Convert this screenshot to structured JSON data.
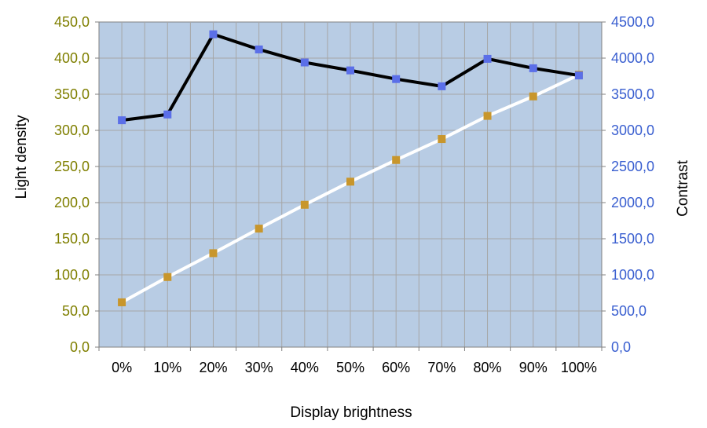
{
  "chart_data": {
    "type": "line",
    "title": "",
    "xlabel": "Display brightness",
    "ylabel_left": "Light density",
    "ylabel_right": "Contrast",
    "categories": [
      "0%",
      "10%",
      "20%",
      "30%",
      "40%",
      "50%",
      "60%",
      "70%",
      "80%",
      "90%",
      "100%"
    ],
    "y_left": {
      "range": [
        0,
        450
      ],
      "ticks": [
        0,
        50,
        100,
        150,
        200,
        250,
        300,
        350,
        400,
        450
      ],
      "tick_labels": [
        "0,0",
        "50,0",
        "100,0",
        "150,0",
        "200,0",
        "250,0",
        "300,0",
        "350,0",
        "400,0",
        "450,0"
      ],
      "label_color": "#7f7f00"
    },
    "y_right": {
      "range": [
        0,
        4500
      ],
      "ticks": [
        0,
        500,
        1000,
        1500,
        2000,
        2500,
        3000,
        3500,
        4000,
        4500
      ],
      "tick_labels": [
        "0,0",
        "500,0",
        "1000,0",
        "1500,0",
        "2000,0",
        "2500,0",
        "3000,0",
        "3500,0",
        "4000,0",
        "4500,0"
      ],
      "label_color": "#3a5fd0"
    },
    "grid": true,
    "legend": "none",
    "plot_background": "#b8cce4",
    "series": [
      {
        "axis": "left",
        "values": [
          62,
          97,
          130,
          164,
          197,
          229,
          259,
          288,
          320,
          347,
          377
        ],
        "line_color": "#ffffff",
        "marker_color": "#c8962c"
      },
      {
        "axis": "right",
        "values": [
          3140,
          3220,
          4330,
          4120,
          3940,
          3830,
          3710,
          3610,
          3990,
          3860,
          3760
        ],
        "line_color": "#000000",
        "marker_color": "#5b6fe8"
      }
    ]
  }
}
